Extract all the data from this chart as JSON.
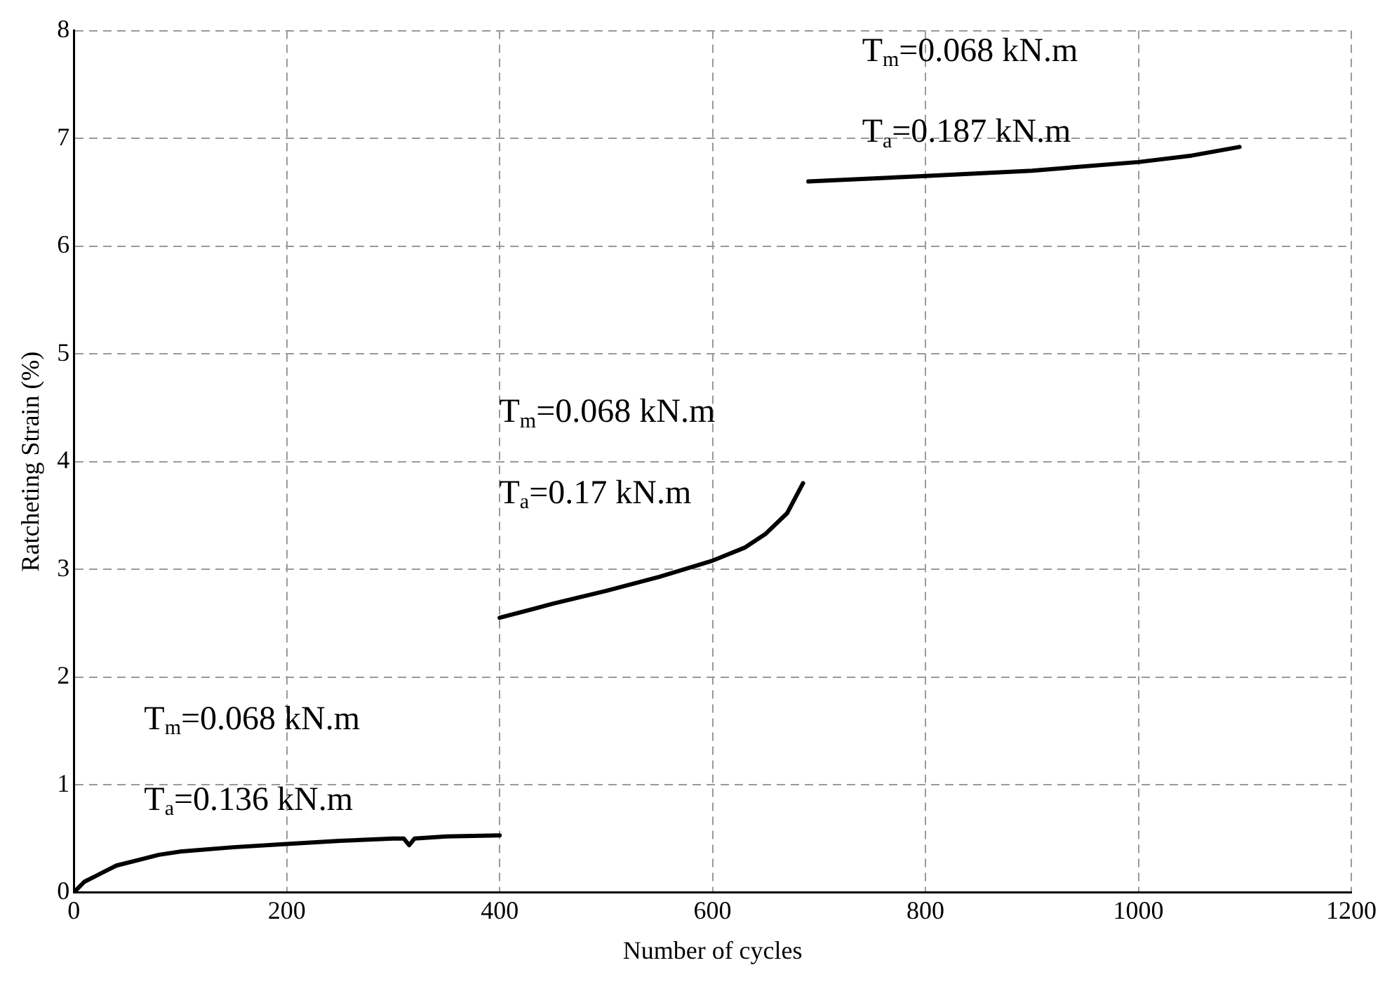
{
  "chart_data": {
    "type": "line",
    "xlabel": "Number of cycles",
    "ylabel": "Ratcheting Strain (%)",
    "xlim": [
      0,
      1200
    ],
    "xticks": [
      0,
      200,
      400,
      600,
      800,
      1000,
      1200
    ],
    "ylim": [
      0,
      8
    ],
    "yticks": [
      0,
      1,
      2,
      3,
      4,
      5,
      6,
      7,
      8
    ],
    "grid": true,
    "marker": "none",
    "line_style": "solid",
    "series": [
      {
        "color": "#000000",
        "x": [
          0,
          5,
          10,
          20,
          30,
          40,
          60,
          80,
          100,
          150,
          200,
          250,
          300,
          310,
          315,
          320,
          350,
          400
        ],
        "values": [
          0,
          0.05,
          0.1,
          0.15,
          0.2,
          0.25,
          0.3,
          0.35,
          0.38,
          0.42,
          0.45,
          0.48,
          0.5,
          0.5,
          0.44,
          0.5,
          0.52,
          0.53
        ]
      },
      {
        "color": "#000000",
        "x": [
          400,
          450,
          500,
          550,
          600,
          630,
          650,
          670,
          685
        ],
        "values": [
          2.55,
          2.68,
          2.8,
          2.93,
          3.08,
          3.2,
          3.33,
          3.52,
          3.8
        ]
      },
      {
        "color": "#000000",
        "x": [
          690,
          800,
          900,
          1000,
          1050,
          1095
        ],
        "values": [
          6.6,
          6.65,
          6.7,
          6.78,
          6.84,
          6.92
        ]
      }
    ],
    "annotations": [
      "T$_{m}$=0.068 kN.m",
      "T$_{a}$=0.136 kN.m",
      "T$_{m}$=0.068 kN.m",
      "T$_{a}$=0.17 kN.m",
      "T$_{m}$=0.068 kN.m",
      "T$_{a}$=0.187 kN.m"
    ]
  }
}
